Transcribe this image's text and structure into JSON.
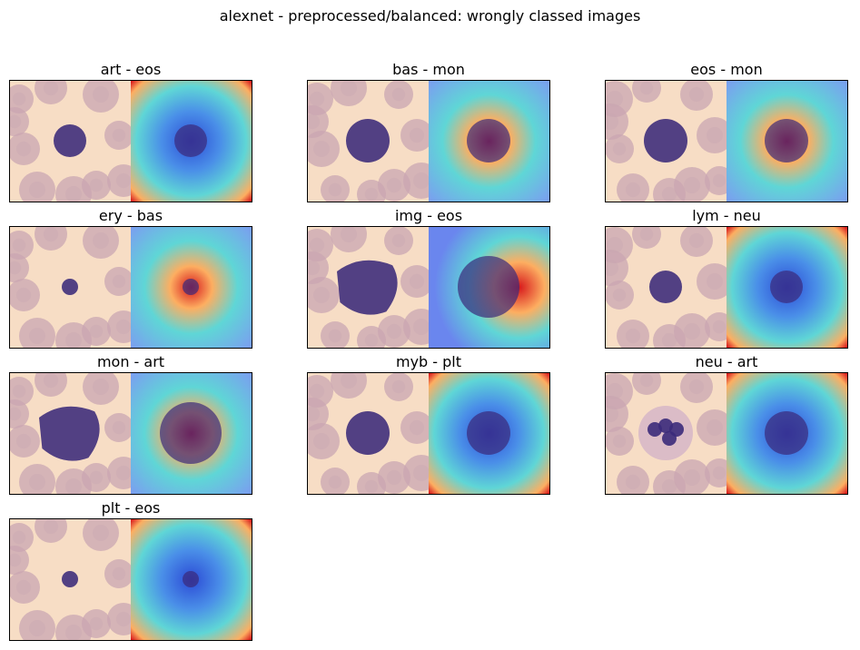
{
  "figure": {
    "title": "alexnet - preprocessed/balanced: wrongly classed images"
  },
  "panels": [
    {
      "label": "art - eos",
      "cell": "small",
      "cell_shape": "round",
      "heat_focus": "center-cool"
    },
    {
      "label": "bas - mon",
      "cell": "medium",
      "cell_shape": "round",
      "heat_focus": "center-hot"
    },
    {
      "label": "eos - mon",
      "cell": "medium",
      "cell_shape": "round",
      "heat_focus": "center-hot"
    },
    {
      "label": "ery - bas",
      "cell": "tiny",
      "cell_shape": "round",
      "heat_focus": "center-hot"
    },
    {
      "label": "img - eos",
      "cell": "large",
      "cell_shape": "irregular",
      "heat_focus": "right-hot"
    },
    {
      "label": "lym - neu",
      "cell": "small",
      "cell_shape": "round",
      "heat_focus": "center-cool"
    },
    {
      "label": "mon - art",
      "cell": "large",
      "cell_shape": "irregular",
      "heat_focus": "center-hot"
    },
    {
      "label": "myb - plt",
      "cell": "medium",
      "cell_shape": "round",
      "heat_focus": "center-cool"
    },
    {
      "label": "neu - art",
      "cell": "medium",
      "cell_shape": "lobed",
      "heat_focus": "center-cool"
    },
    {
      "label": "plt - eos",
      "cell": "tiny",
      "cell_shape": "round",
      "heat_focus": "center-cool"
    }
  ],
  "palette": {
    "background": "#f7ddc5",
    "rbc": "#c9a6b2",
    "nucleus": "#3b2a7a",
    "heat_hot": "#d7191c",
    "heat_warm": "#fdae61",
    "heat_mid": "#5fd6d6",
    "heat_cool": "#2c4bd6"
  }
}
